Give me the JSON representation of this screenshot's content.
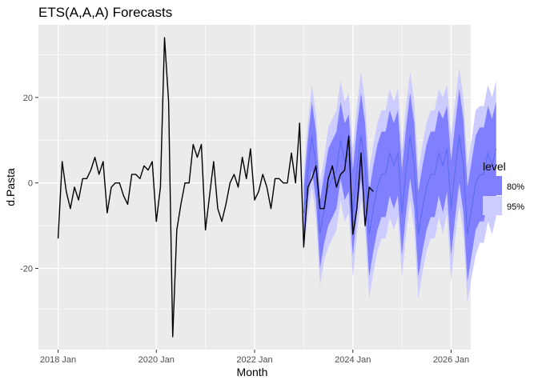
{
  "chart_data": {
    "type": "line",
    "title": "ETS(A,A,A) Forecasts",
    "xlabel": "Month",
    "ylabel": "d.Pasta",
    "x_tick_labels": [
      "2018 Jan",
      "2020 Jan",
      "2022 Jan",
      "2024 Jan",
      "2026 Jan"
    ],
    "x_tick_values": [
      2018.0,
      2020.0,
      2022.0,
      2024.0,
      2026.0
    ],
    "y_tick_labels": [
      "-20",
      "0",
      "20"
    ],
    "y_tick_values": [
      -20,
      0,
      20
    ],
    "xlim": [
      2017.6,
      2026.4
    ],
    "ylim": [
      -39,
      37
    ],
    "grid": true,
    "legend": {
      "title": "level",
      "position": "right",
      "entries": [
        {
          "label": "80%",
          "color": "#8080ff"
        },
        {
          "label": "95%",
          "color": "#ccccff"
        }
      ]
    },
    "colors": {
      "panel": "#ebebeb",
      "grid_major": "#ffffff",
      "actual_line": "#000000",
      "forecast_line": "#5b6cf0",
      "interval_80": "#8080ff",
      "interval_95": "#ccccff"
    },
    "series": [
      {
        "role": "actual",
        "start": 2018.0,
        "step": 0.083333,
        "values": [
          -13,
          5,
          -2,
          -6,
          -1,
          -4,
          1,
          1,
          3,
          6,
          2,
          5,
          -7,
          -1,
          0,
          0,
          -3,
          -5,
          2,
          2,
          1,
          4,
          3,
          5,
          -9,
          -1,
          34,
          19,
          -36,
          -11,
          -5,
          0,
          0,
          9,
          6,
          9,
          -11,
          -3,
          5,
          -6,
          -9,
          -5,
          0,
          2,
          -1,
          6,
          1,
          8,
          -4,
          -2,
          2,
          -1,
          -6,
          1,
          1,
          0,
          0,
          7,
          0,
          14,
          -15,
          -1,
          1,
          4,
          -6,
          -6,
          1,
          4,
          -1,
          2,
          3,
          11,
          -12,
          -6,
          7,
          -10,
          -1,
          -2
        ]
      },
      {
        "role": "forecast",
        "start": 2023.0,
        "step": 0.083333,
        "values": [
          -7,
          3,
          11,
          4,
          -12,
          -6,
          -1,
          1,
          3,
          10,
          5,
          7,
          -7,
          3,
          11,
          4,
          -12,
          -6,
          -1,
          2,
          2,
          7,
          4,
          7,
          -7,
          3,
          11,
          4,
          -12,
          -6,
          -1,
          2,
          2,
          7,
          4,
          8,
          -6,
          3,
          11,
          4,
          -12,
          -6,
          0,
          2,
          2,
          7,
          4,
          8
        ]
      }
    ],
    "interval_80": {
      "lower": [
        -13,
        -4,
        3,
        -4,
        -20,
        -14,
        -10,
        -8,
        -6,
        1,
        -4,
        -2,
        -17,
        -7,
        1,
        -6,
        -22,
        -16,
        -11,
        -8,
        -8,
        -3,
        -6,
        -3,
        -17,
        -7,
        1,
        -6,
        -22,
        -16,
        -11,
        -8,
        -8,
        -3,
        -7,
        -2,
        -17,
        -8,
        0,
        -7,
        -23,
        -17,
        -11,
        -9,
        -9,
        -4,
        -7,
        -3
      ],
      "upper": [
        -1,
        10,
        19,
        12,
        -4,
        2,
        8,
        10,
        12,
        19,
        14,
        16,
        3,
        13,
        21,
        14,
        -2,
        4,
        9,
        12,
        12,
        17,
        14,
        17,
        3,
        13,
        21,
        14,
        -2,
        4,
        9,
        12,
        12,
        17,
        15,
        18,
        5,
        14,
        22,
        15,
        -1,
        5,
        11,
        13,
        13,
        18,
        15,
        19
      ]
    },
    "interval_95": {
      "lower": [
        -16,
        -8,
        -1,
        -8,
        -24,
        -18,
        -15,
        -13,
        -11,
        -4,
        -9,
        -7,
        -22,
        -12,
        -4,
        -11,
        -27,
        -21,
        -16,
        -13,
        -13,
        -8,
        -11,
        -8,
        -22,
        -12,
        -4,
        -11,
        -27,
        -21,
        -16,
        -13,
        -13,
        -8,
        -12,
        -7,
        -23,
        -13,
        -5,
        -12,
        -28,
        -22,
        -17,
        -14,
        -14,
        -9,
        -12,
        -8
      ],
      "upper": [
        2,
        14,
        23,
        16,
        0,
        6,
        13,
        15,
        17,
        24,
        19,
        21,
        8,
        18,
        26,
        19,
        3,
        9,
        14,
        17,
        17,
        22,
        19,
        22,
        8,
        18,
        26,
        19,
        3,
        9,
        14,
        17,
        17,
        22,
        20,
        23,
        11,
        19,
        27,
        20,
        4,
        10,
        17,
        18,
        18,
        23,
        20,
        24
      ]
    }
  }
}
